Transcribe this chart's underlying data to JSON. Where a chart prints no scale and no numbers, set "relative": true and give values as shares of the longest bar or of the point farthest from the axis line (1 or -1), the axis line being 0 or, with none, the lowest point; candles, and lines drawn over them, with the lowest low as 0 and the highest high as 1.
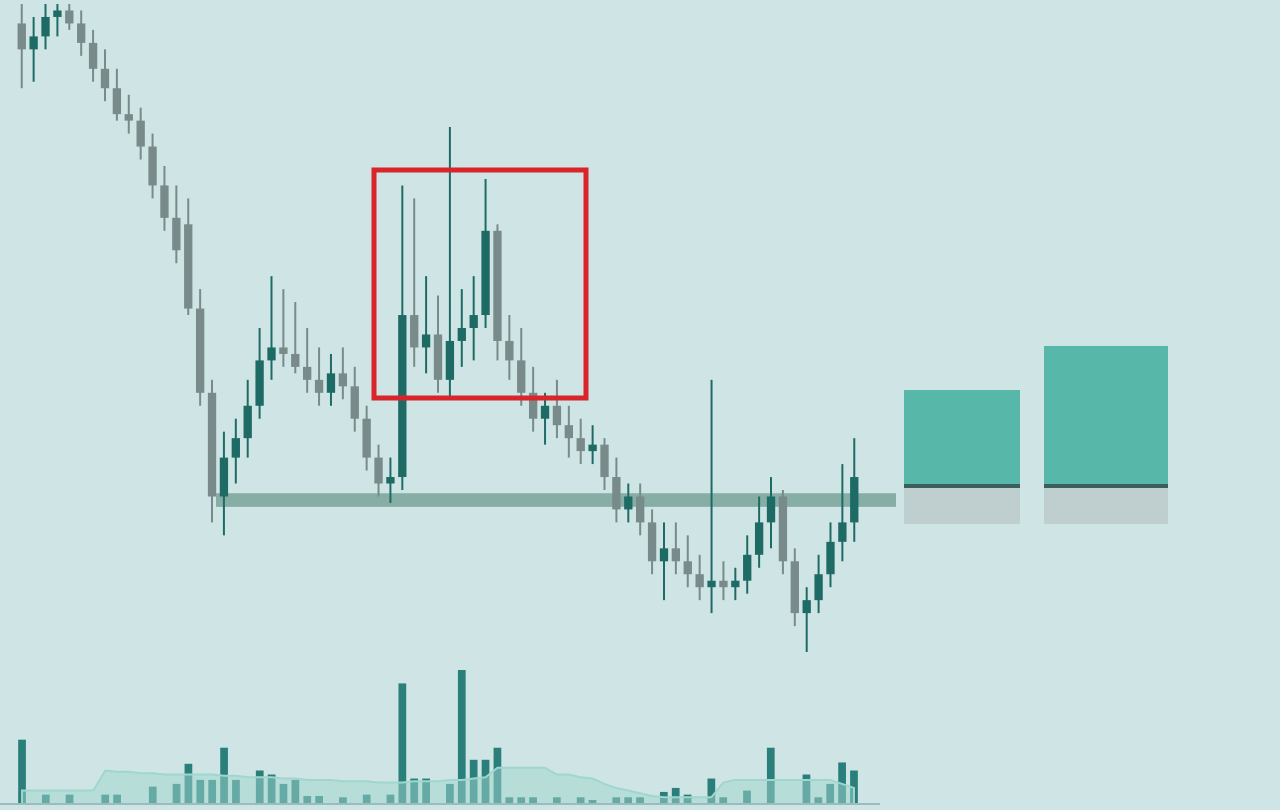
{
  "chart_data": [
    {
      "type": "candlestick",
      "relative": true,
      "colors": [
        "#788a89",
        "#1e6b66",
        "#1e6b66",
        "#1e6b66",
        "#788a89",
        "#788a89",
        "#788a89",
        "#788a89",
        "#788a89",
        "#788a89",
        "#788a89",
        "#788a89",
        "#788a89",
        "#788a89",
        "#788a89",
        "#788a89",
        "#788a89",
        "#1e6b66",
        "#1e6b66",
        "#1e6b66",
        "#1e6b66",
        "#1e6b66",
        "#788a89",
        "#788a89",
        "#788a89",
        "#788a89",
        "#1e6b66",
        "#788a89",
        "#788a89",
        "#788a89",
        "#788a89",
        "#1e6b66",
        "#1e6b66",
        "#788a89",
        "#1e6b66",
        "#788a89",
        "#1e6b66",
        "#1e6b66",
        "#1e6b66",
        "#1e6b66",
        "#788a89",
        "#788a89",
        "#788a89",
        "#788a89",
        "#1e6b66",
        "#788a89",
        "#788a89",
        "#788a89",
        "#1e6b66",
        "#788a89",
        "#788a89",
        "#1e6b66",
        "#788a89",
        "#788a89",
        "#1e6b66",
        "#788a89",
        "#788a89",
        "#788a89",
        "#1e6b66",
        "#788a89",
        "#1e6b66",
        "#1e6b66",
        "#1e6b66",
        "#1e6b66",
        "#788a89",
        "#788a89",
        "#1e6b66",
        "#1e6b66",
        "#1e6b66",
        "#1e6b66",
        "#1e6b66"
      ],
      "categories": [
        null,
        null,
        null,
        null,
        null,
        null,
        null,
        null,
        null,
        null,
        null,
        null,
        null,
        null,
        null,
        null,
        null,
        null,
        null,
        null,
        null,
        null,
        null,
        null,
        null,
        null,
        null,
        null,
        null,
        null,
        null,
        null,
        null,
        null,
        null,
        null,
        null,
        null,
        null,
        null,
        null,
        null,
        null,
        null,
        null,
        null,
        null,
        null,
        null,
        null,
        null,
        null,
        null,
        null,
        null,
        null,
        null,
        null,
        null,
        null,
        null,
        null,
        null,
        null,
        null,
        null,
        null,
        null,
        null,
        null,
        null
      ],
      "ohlc": [
        [
          0.97,
          1,
          0.87,
          0.93
        ],
        [
          0.93,
          0.98,
          0.88,
          0.95
        ],
        [
          0.95,
          1,
          0.93,
          0.98
        ],
        [
          0.98,
          1,
          0.95,
          0.99
        ],
        [
          0.99,
          1,
          0.96,
          0.97
        ],
        [
          0.97,
          0.99,
          0.92,
          0.94
        ],
        [
          0.94,
          0.96,
          0.88,
          0.9
        ],
        [
          0.9,
          0.93,
          0.85,
          0.87
        ],
        [
          0.87,
          0.9,
          0.82,
          0.83
        ],
        [
          0.83,
          0.86,
          0.8,
          0.82
        ],
        [
          0.82,
          0.84,
          0.76,
          0.78
        ],
        [
          0.78,
          0.8,
          0.7,
          0.72
        ],
        [
          0.72,
          0.75,
          0.65,
          0.67
        ],
        [
          0.67,
          0.72,
          0.6,
          0.62
        ],
        [
          0.66,
          0.7,
          0.52,
          0.53
        ],
        [
          0.53,
          0.56,
          0.38,
          0.4
        ],
        [
          0.4,
          0.42,
          0.2,
          0.24
        ],
        [
          0.24,
          0.34,
          0.18,
          0.3
        ],
        [
          0.3,
          0.36,
          0.26,
          0.33
        ],
        [
          0.33,
          0.42,
          0.3,
          0.38
        ],
        [
          0.38,
          0.5,
          0.36,
          0.45
        ],
        [
          0.45,
          0.58,
          0.42,
          0.47
        ],
        [
          0.47,
          0.56,
          0.44,
          0.46
        ],
        [
          0.46,
          0.54,
          0.43,
          0.44
        ],
        [
          0.44,
          0.5,
          0.4,
          0.42
        ],
        [
          0.42,
          0.47,
          0.38,
          0.4
        ],
        [
          0.4,
          0.46,
          0.38,
          0.43
        ],
        [
          0.43,
          0.47,
          0.39,
          0.41
        ],
        [
          0.41,
          0.44,
          0.34,
          0.36
        ],
        [
          0.36,
          0.38,
          0.28,
          0.3
        ],
        [
          0.3,
          0.32,
          0.24,
          0.26
        ],
        [
          0.26,
          0.3,
          0.23,
          0.27
        ],
        [
          0.27,
          0.72,
          0.25,
          0.52
        ],
        [
          0.52,
          0.7,
          0.44,
          0.47
        ],
        [
          0.47,
          0.58,
          0.43,
          0.49
        ],
        [
          0.49,
          0.55,
          0.4,
          0.42
        ],
        [
          0.42,
          0.81,
          0.39,
          0.48
        ],
        [
          0.48,
          0.56,
          0.44,
          0.5
        ],
        [
          0.5,
          0.58,
          0.45,
          0.52
        ],
        [
          0.52,
          0.73,
          0.5,
          0.65
        ],
        [
          0.65,
          0.66,
          0.45,
          0.48
        ],
        [
          0.48,
          0.52,
          0.42,
          0.45
        ],
        [
          0.45,
          0.5,
          0.38,
          0.4
        ],
        [
          0.4,
          0.44,
          0.34,
          0.36
        ],
        [
          0.36,
          0.4,
          0.32,
          0.38
        ],
        [
          0.38,
          0.42,
          0.33,
          0.35
        ],
        [
          0.35,
          0.38,
          0.3,
          0.33
        ],
        [
          0.33,
          0.36,
          0.29,
          0.31
        ],
        [
          0.31,
          0.35,
          0.29,
          0.32
        ],
        [
          0.32,
          0.33,
          0.25,
          0.27
        ],
        [
          0.27,
          0.3,
          0.2,
          0.22
        ],
        [
          0.22,
          0.26,
          0.2,
          0.24
        ],
        [
          0.24,
          0.26,
          0.18,
          0.2
        ],
        [
          0.2,
          0.22,
          0.12,
          0.14
        ],
        [
          0.14,
          0.2,
          0.08,
          0.16
        ],
        [
          0.16,
          0.2,
          0.12,
          0.14
        ],
        [
          0.14,
          0.18,
          0.1,
          0.12
        ],
        [
          0.12,
          0.15,
          0.08,
          0.1
        ],
        [
          0.1,
          0.42,
          0.06,
          0.11
        ],
        [
          0.11,
          0.14,
          0.08,
          0.1
        ],
        [
          0.1,
          0.13,
          0.08,
          0.11
        ],
        [
          0.11,
          0.18,
          0.09,
          0.15
        ],
        [
          0.15,
          0.24,
          0.13,
          0.2
        ],
        [
          0.2,
          0.27,
          0.16,
          0.24
        ],
        [
          0.24,
          0.25,
          0.12,
          0.14
        ],
        [
          0.14,
          0.16,
          0.04,
          0.06
        ],
        [
          0.06,
          0.1,
          0,
          0.08
        ],
        [
          0.08,
          0.15,
          0.06,
          0.12
        ],
        [
          0.12,
          0.2,
          0.1,
          0.17
        ],
        [
          0.17,
          0.29,
          0.14,
          0.2
        ],
        [
          0.2,
          0.33,
          0.17,
          0.27
        ]
      ],
      "bands": [
        {
          "axis": "y",
          "from": 0.224,
          "to": 0.245,
          "color": "#86aea4"
        }
      ]
    },
    {
      "type": "bar",
      "relative": true,
      "categories": [
        null,
        null,
        null,
        null,
        null,
        null,
        null,
        null,
        null,
        null,
        null,
        null,
        null,
        null,
        null,
        null,
        null,
        null,
        null,
        null,
        null,
        null,
        null,
        null,
        null,
        null,
        null,
        null,
        null,
        null,
        null,
        null,
        null,
        null,
        null,
        null,
        null,
        null,
        null,
        null,
        null,
        null,
        null,
        null,
        null,
        null,
        null,
        null,
        null,
        null,
        null,
        null,
        null,
        null,
        null,
        null,
        null,
        null,
        null,
        null,
        null,
        null,
        null,
        null,
        null,
        null,
        null,
        null,
        null,
        null,
        null
      ],
      "series": [
        {
          "type": "area",
          "color": "#9fd6ce",
          "values": [
            0.1,
            0.1,
            0.1,
            0.1,
            0.1,
            0.1,
            0.1,
            0.25,
            0.24,
            0.24,
            0.23,
            0.23,
            0.22,
            0.22,
            0.22,
            0.22,
            0.22,
            0.21,
            0.21,
            0.2,
            0.2,
            0.2,
            0.19,
            0.19,
            0.18,
            0.18,
            0.18,
            0.17,
            0.17,
            0.17,
            0.16,
            0.16,
            0.16,
            0.17,
            0.17,
            0.17,
            0.18,
            0.18,
            0.19,
            0.2,
            0.27,
            0.27,
            0.27,
            0.27,
            0.27,
            0.22,
            0.22,
            0.2,
            0.19,
            0.15,
            0.12,
            0.1,
            0.08,
            0.06,
            0.05,
            0.05,
            0.05,
            0.05,
            0.05,
            0.16,
            0.18,
            0.18,
            0.18,
            0.18,
            0.18,
            0.18,
            0.18,
            0.18,
            0.18,
            0.15,
            0.12
          ]
        },
        {
          "type": "bar",
          "color": "#2a7f7a",
          "values": [
            0.48,
            0,
            0.07,
            0,
            0.07,
            0,
            0,
            0.07,
            0.07,
            0,
            0,
            0.13,
            0,
            0.15,
            0.3,
            0.18,
            0.18,
            0.42,
            0.18,
            0,
            0.25,
            0.22,
            0.15,
            0.18,
            0.06,
            0.06,
            0,
            0.05,
            0,
            0.07,
            0,
            0.07,
            0.9,
            0.19,
            0.19,
            0,
            0.15,
            1,
            0.33,
            0.33,
            0.42,
            0.05,
            0.05,
            0.05,
            0,
            0.05,
            0,
            0.05,
            0.03,
            0,
            0.05,
            0.05,
            0.05,
            0,
            0.09,
            0.12,
            0.07,
            0,
            0.19,
            0.05,
            0,
            0.1,
            0,
            0.42,
            0,
            0,
            0.22,
            0.05,
            0.15,
            0.31,
            0.25
          ]
        }
      ]
    }
  ]
}
